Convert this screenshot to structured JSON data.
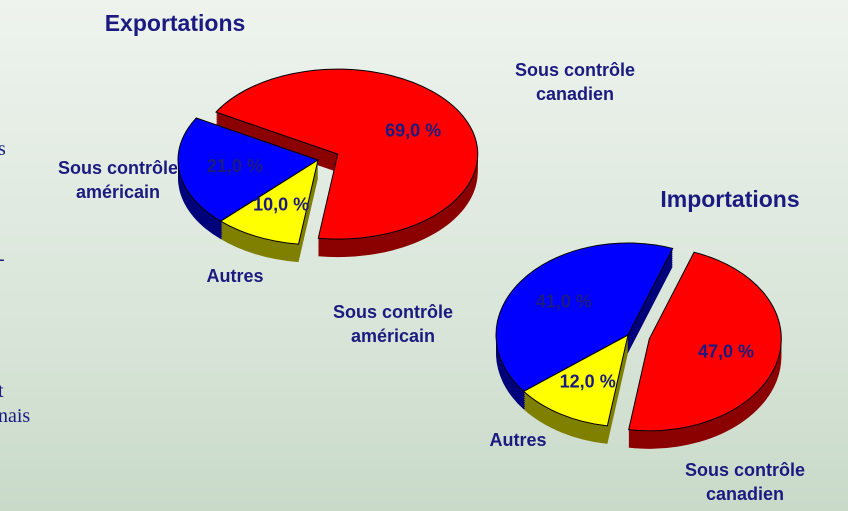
{
  "background_text": [
    "s",
    "-",
    "t",
    "nais"
  ],
  "chart_data": [
    {
      "type": "pie",
      "title": "Exportations",
      "categories": [
        "Sous contrôle canadien",
        "Sous contrôle américain",
        "Autres"
      ],
      "values": [
        69,
        21,
        10
      ],
      "value_labels": [
        "69,0 %",
        "21,0 %",
        "10,0 %"
      ],
      "colors": [
        "#ff0000",
        "#0000ff",
        "#ffff00"
      ]
    },
    {
      "type": "pie",
      "title": "Importations",
      "categories": [
        "Sous contrôle canadien",
        "Sous contrôle américain",
        "Autres"
      ],
      "values": [
        47,
        41,
        12
      ],
      "value_labels": [
        "47,0 %",
        "41,0 %",
        "12,0 %"
      ],
      "colors": [
        "#ff0000",
        "#0000ff",
        "#ffff00"
      ]
    }
  ]
}
